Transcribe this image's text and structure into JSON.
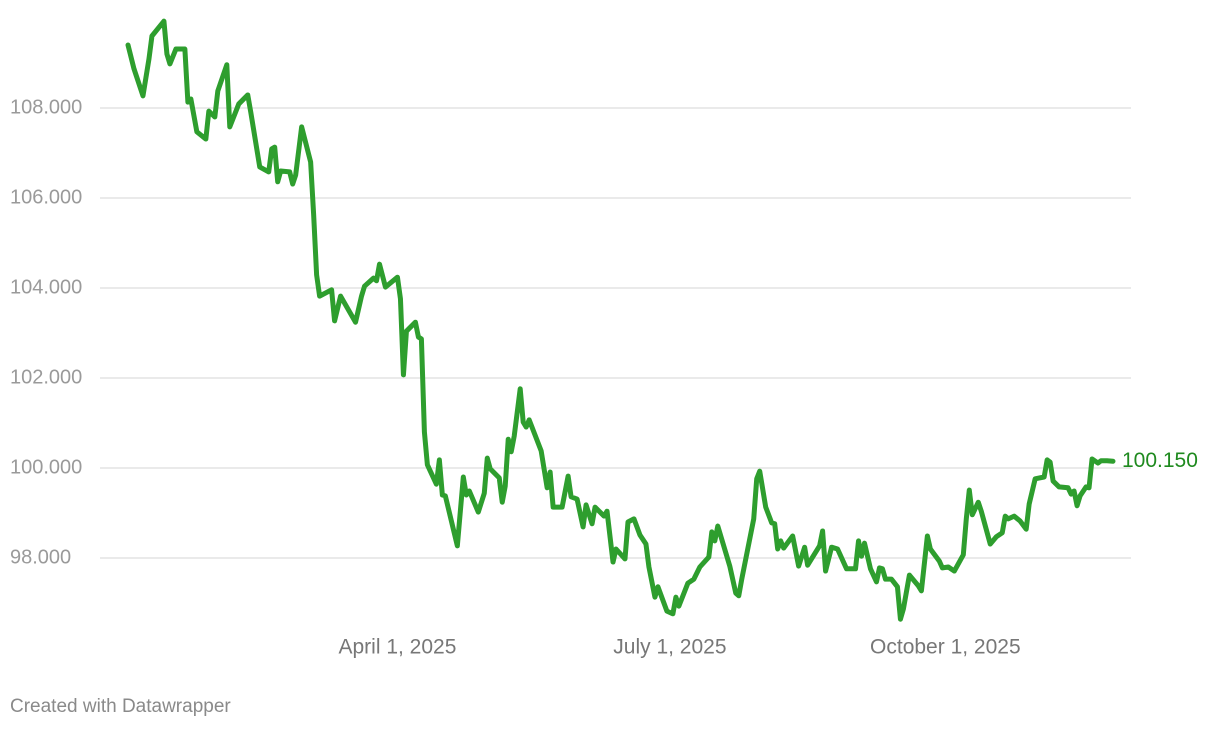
{
  "chart_data": {
    "type": "line",
    "x": [
      "2025-01-01",
      "2025-01-03",
      "2025-01-06",
      "2025-01-08",
      "2025-01-09",
      "2025-01-13",
      "2025-01-14",
      "2025-01-15",
      "2025-01-17",
      "2025-01-20",
      "2025-01-21",
      "2025-01-22",
      "2025-01-24",
      "2025-01-27",
      "2025-01-28",
      "2025-01-30",
      "2025-01-31",
      "2025-02-03",
      "2025-02-04",
      "2025-02-07",
      "2025-02-10",
      "2025-02-11",
      "2025-02-14",
      "2025-02-17",
      "2025-02-18",
      "2025-02-19",
      "2025-02-20",
      "2025-02-21",
      "2025-02-24",
      "2025-02-25",
      "2025-02-26",
      "2025-02-28",
      "2025-03-03",
      "2025-03-04",
      "2025-03-05",
      "2025-03-06",
      "2025-03-10",
      "2025-03-11",
      "2025-03-13",
      "2025-03-18",
      "2025-03-20",
      "2025-03-21",
      "2025-03-24",
      "2025-03-25",
      "2025-03-26",
      "2025-03-28",
      "2025-04-01",
      "2025-04-02",
      "2025-04-03",
      "2025-04-04",
      "2025-04-07",
      "2025-04-08",
      "2025-04-09",
      "2025-04-10",
      "2025-04-11",
      "2025-04-14",
      "2025-04-15",
      "2025-04-16",
      "2025-04-17",
      "2025-04-21",
      "2025-04-23",
      "2025-04-24",
      "2025-04-25",
      "2025-04-28",
      "2025-04-30",
      "2025-05-01",
      "2025-05-02",
      "2025-05-05",
      "2025-05-06",
      "2025-05-07",
      "2025-05-08",
      "2025-05-09",
      "2025-05-10",
      "2025-05-12",
      "2025-05-13",
      "2025-05-14",
      "2025-05-15",
      "2025-05-19",
      "2025-05-21",
      "2025-05-22",
      "2025-05-23",
      "2025-05-26",
      "2025-05-28",
      "2025-05-29",
      "2025-05-31",
      "2025-06-02",
      "2025-06-03",
      "2025-06-05",
      "2025-06-06",
      "2025-06-09",
      "2025-06-10",
      "2025-06-12",
      "2025-06-13",
      "2025-06-16",
      "2025-06-17",
      "2025-06-19",
      "2025-06-21",
      "2025-06-23",
      "2025-06-24",
      "2025-06-26",
      "2025-06-27",
      "2025-06-30",
      "2025-07-02",
      "2025-07-03",
      "2025-07-04",
      "2025-07-07",
      "2025-07-09",
      "2025-07-11",
      "2025-07-14",
      "2025-07-15",
      "2025-07-16",
      "2025-07-17",
      "2025-07-21",
      "2025-07-23",
      "2025-07-24",
      "2025-07-25",
      "2025-07-29",
      "2025-07-30",
      "2025-07-31",
      "2025-08-02",
      "2025-08-04",
      "2025-08-05",
      "2025-08-06",
      "2025-08-07",
      "2025-08-08",
      "2025-08-11",
      "2025-08-13",
      "2025-08-15",
      "2025-08-16",
      "2025-08-20",
      "2025-08-21",
      "2025-08-22",
      "2025-08-24",
      "2025-08-26",
      "2025-08-29",
      "2025-09-01",
      "2025-09-02",
      "2025-09-03",
      "2025-09-04",
      "2025-09-06",
      "2025-09-08",
      "2025-09-09",
      "2025-09-10",
      "2025-09-11",
      "2025-09-13",
      "2025-09-15",
      "2025-09-16",
      "2025-09-17",
      "2025-09-19",
      "2025-09-22",
      "2025-09-23",
      "2025-09-25",
      "2025-09-26",
      "2025-09-29",
      "2025-09-30",
      "2025-10-02",
      "2025-10-04",
      "2025-10-07",
      "2025-10-08",
      "2025-10-09",
      "2025-10-10",
      "2025-10-12",
      "2025-10-13",
      "2025-10-16",
      "2025-10-18",
      "2025-10-20",
      "2025-10-21",
      "2025-10-22",
      "2025-10-24",
      "2025-10-26",
      "2025-10-28",
      "2025-10-29",
      "2025-10-31",
      "2025-11-03",
      "2025-11-04",
      "2025-11-05",
      "2025-11-06",
      "2025-11-08",
      "2025-11-11",
      "2025-11-12",
      "2025-11-13",
      "2025-11-14",
      "2025-11-15",
      "2025-11-17",
      "2025-11-18",
      "2025-11-19",
      "2025-11-21",
      "2025-11-22",
      "2025-11-24",
      "2025-11-26"
    ],
    "values": [
      109.4,
      108.87,
      108.27,
      109.09,
      109.6,
      109.93,
      109.2,
      108.98,
      109.31,
      109.31,
      108.13,
      108.2,
      107.47,
      107.31,
      107.93,
      107.8,
      108.38,
      108.96,
      107.58,
      108.09,
      108.29,
      107.91,
      106.69,
      106.58,
      107.09,
      107.13,
      106.36,
      106.6,
      106.58,
      106.31,
      106.51,
      107.58,
      106.8,
      105.64,
      104.29,
      103.82,
      103.96,
      103.27,
      103.82,
      103.24,
      103.82,
      104.04,
      104.22,
      104.16,
      104.53,
      104.02,
      104.24,
      103.76,
      102.07,
      103.04,
      103.24,
      102.91,
      102.87,
      100.8,
      100.07,
      99.64,
      100.18,
      99.4,
      99.38,
      98.27,
      99.8,
      99.4,
      99.49,
      99.02,
      99.44,
      100.22,
      99.98,
      99.78,
      99.24,
      99.6,
      100.64,
      100.36,
      100.71,
      101.76,
      101.02,
      100.91,
      101.07,
      100.38,
      99.56,
      99.91,
      99.13,
      99.13,
      99.82,
      99.36,
      99.31,
      98.69,
      99.18,
      98.76,
      99.13,
      98.93,
      99.04,
      97.91,
      98.2,
      97.98,
      98.8,
      98.87,
      98.51,
      98.31,
      97.8,
      97.13,
      97.36,
      96.82,
      96.76,
      97.13,
      96.93,
      97.44,
      97.53,
      97.8,
      98.02,
      98.58,
      98.38,
      98.71,
      97.82,
      97.22,
      97.16,
      97.53,
      98.87,
      99.76,
      99.93,
      99.13,
      98.78,
      98.76,
      98.2,
      98.38,
      98.22,
      98.49,
      97.82,
      98.24,
      97.84,
      98.27,
      98.6,
      97.71,
      98.24,
      98.2,
      97.76,
      97.76,
      98.38,
      98.04,
      98.33,
      97.76,
      97.47,
      97.78,
      97.76,
      97.53,
      97.53,
      97.36,
      96.64,
      96.87,
      97.62,
      97.38,
      97.27,
      98.49,
      98.2,
      97.93,
      97.78,
      97.8,
      97.71,
      98.07,
      98.87,
      99.51,
      98.96,
      99.24,
      99.04,
      98.31,
      98.47,
      98.56,
      98.93,
      98.87,
      98.93,
      98.82,
      98.64,
      99.2,
      99.76,
      99.8,
      100.18,
      100.13,
      99.71,
      99.58,
      99.56,
      99.42,
      99.49,
      99.16,
      99.38,
      99.58,
      99.56,
      100.2,
      100.11,
      100.16,
      100.16,
      100.15
    ],
    "value_labels": [
      null,
      null,
      null,
      null,
      null,
      null,
      null,
      null,
      null,
      null,
      null,
      null,
      null,
      null,
      null,
      null,
      null,
      null,
      null,
      null,
      null,
      null,
      null,
      null,
      null,
      null,
      null,
      null,
      null,
      null,
      null,
      null,
      null,
      null,
      null,
      null,
      null,
      null,
      null,
      null,
      null,
      null,
      null,
      null,
      null,
      null,
      null,
      null,
      null,
      null,
      null,
      null,
      null,
      null,
      null,
      null,
      null,
      null,
      null,
      null,
      null,
      null,
      null,
      null,
      null,
      null,
      null,
      null,
      null,
      null,
      null,
      null,
      null,
      null,
      null,
      null,
      null,
      null,
      null,
      null,
      null,
      null,
      null,
      null,
      null,
      null,
      null,
      null,
      null,
      null,
      null,
      null,
      null,
      null,
      null,
      null,
      null,
      null,
      null,
      null,
      null,
      null,
      null,
      null,
      null,
      null,
      null,
      null,
      null,
      null,
      null,
      null,
      null,
      null,
      null,
      null,
      null,
      null,
      null,
      null,
      null,
      null,
      null,
      null,
      null,
      null,
      null,
      null,
      null,
      null,
      null,
      null,
      null,
      null,
      null,
      null,
      null,
      null,
      null,
      null,
      null,
      null,
      null,
      null,
      null,
      null,
      null,
      null,
      null,
      null,
      null,
      null,
      null,
      null,
      null,
      null,
      null,
      null,
      null,
      null,
      null,
      null,
      null,
      null,
      null,
      null,
      null,
      null,
      null,
      null,
      null,
      null,
      null,
      null,
      null,
      null,
      null,
      null,
      null,
      null,
      null,
      null,
      null,
      null,
      null,
      null,
      null,
      null,
      null,
      "100.150"
    ],
    "color": "#2e9e2e",
    "label_color": "#1f8a1f",
    "xlim": [
      "2025-01-01",
      "2025-11-26"
    ],
    "xticks": [
      {
        "value": "2025-04-01",
        "label": "April 1, 2025"
      },
      {
        "value": "2025-07-01",
        "label": "July 1, 2025"
      },
      {
        "value": "2025-10-01",
        "label": "October 1, 2025"
      }
    ],
    "ylim": [
      96.4,
      110
    ],
    "yticks": [
      {
        "value": 98,
        "label": "98.000"
      },
      {
        "value": 100,
        "label": "100.000"
      },
      {
        "value": 102,
        "label": "102.000"
      },
      {
        "value": 104,
        "label": "104.000"
      },
      {
        "value": 106,
        "label": "106.000"
      },
      {
        "value": 108,
        "label": "108.000"
      }
    ],
    "grid": true,
    "credit": "Created with Datawrapper"
  }
}
